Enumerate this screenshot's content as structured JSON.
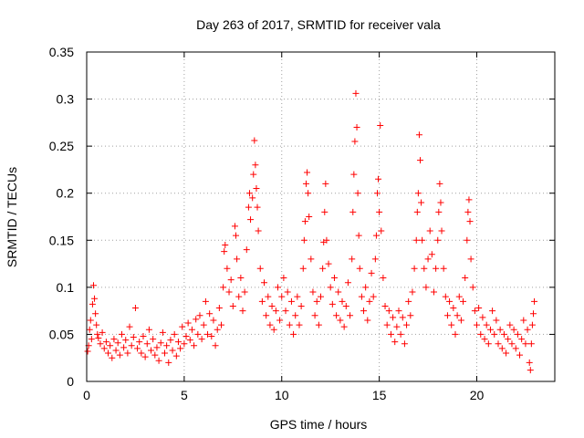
{
  "chart_data": {
    "type": "scatter",
    "title": "Day 263 of 2017, SRMTID for receiver vala",
    "xlabel": "GPS time / hours",
    "ylabel": "SRMTID / TECUs",
    "xlim": [
      0,
      24
    ],
    "ylim": [
      0,
      0.35
    ],
    "xticks": [
      0,
      5,
      10,
      15,
      20
    ],
    "xtick_labels": [
      "0",
      "5",
      "10",
      "15",
      "20"
    ],
    "yticks": [
      0,
      0.05,
      0.1,
      0.15,
      0.2,
      0.25,
      0.3,
      0.35
    ],
    "ytick_labels": [
      "0",
      "0.05",
      "0.1",
      "0.15",
      "0.2",
      "0.25",
      "0.3",
      "0.35"
    ],
    "grid": true,
    "marker": "plus",
    "marker_color": "#ff0000",
    "series": [
      {
        "name": "SRMTID",
        "points": [
          [
            0.05,
            0.032
          ],
          [
            0.1,
            0.038
          ],
          [
            0.15,
            0.055
          ],
          [
            0.2,
            0.065
          ],
          [
            0.25,
            0.045
          ],
          [
            0.3,
            0.082
          ],
          [
            0.35,
            0.102
          ],
          [
            0.4,
            0.088
          ],
          [
            0.45,
            0.072
          ],
          [
            0.5,
            0.06
          ],
          [
            0.55,
            0.05
          ],
          [
            0.6,
            0.046
          ],
          [
            0.7,
            0.04
          ],
          [
            0.8,
            0.052
          ],
          [
            0.9,
            0.035
          ],
          [
            1.0,
            0.042
          ],
          [
            1.1,
            0.03
          ],
          [
            1.2,
            0.038
          ],
          [
            1.3,
            0.025
          ],
          [
            1.4,
            0.045
          ],
          [
            1.5,
            0.033
          ],
          [
            1.6,
            0.041
          ],
          [
            1.7,
            0.028
          ],
          [
            1.8,
            0.05
          ],
          [
            1.9,
            0.036
          ],
          [
            2.0,
            0.044
          ],
          [
            2.1,
            0.03
          ],
          [
            2.2,
            0.058
          ],
          [
            2.3,
            0.038
          ],
          [
            2.4,
            0.047
          ],
          [
            2.5,
            0.078
          ],
          [
            2.6,
            0.035
          ],
          [
            2.7,
            0.042
          ],
          [
            2.8,
            0.03
          ],
          [
            2.9,
            0.048
          ],
          [
            3.0,
            0.026
          ],
          [
            3.1,
            0.04
          ],
          [
            3.2,
            0.055
          ],
          [
            3.3,
            0.033
          ],
          [
            3.4,
            0.045
          ],
          [
            3.5,
            0.028
          ],
          [
            3.6,
            0.036
          ],
          [
            3.7,
            0.022
          ],
          [
            3.8,
            0.041
          ],
          [
            3.9,
            0.052
          ],
          [
            4.0,
            0.03
          ],
          [
            4.1,
            0.038
          ],
          [
            4.2,
            0.02
          ],
          [
            4.3,
            0.044
          ],
          [
            4.4,
            0.033
          ],
          [
            4.5,
            0.05
          ],
          [
            4.6,
            0.027
          ],
          [
            4.7,
            0.042
          ],
          [
            4.8,
            0.035
          ],
          [
            4.9,
            0.058
          ],
          [
            5.0,
            0.04
          ],
          [
            5.1,
            0.048
          ],
          [
            5.2,
            0.062
          ],
          [
            5.3,
            0.044
          ],
          [
            5.4,
            0.055
          ],
          [
            5.5,
            0.038
          ],
          [
            5.6,
            0.066
          ],
          [
            5.7,
            0.05
          ],
          [
            5.8,
            0.07
          ],
          [
            5.9,
            0.045
          ],
          [
            6.0,
            0.06
          ],
          [
            6.1,
            0.085
          ],
          [
            6.2,
            0.05
          ],
          [
            6.3,
            0.072
          ],
          [
            6.4,
            0.048
          ],
          [
            6.5,
            0.065
          ],
          [
            6.6,
            0.038
          ],
          [
            6.7,
            0.055
          ],
          [
            6.8,
            0.078
          ],
          [
            6.9,
            0.06
          ],
          [
            7.0,
            0.1
          ],
          [
            7.05,
            0.138
          ],
          [
            7.1,
            0.145
          ],
          [
            7.2,
            0.12
          ],
          [
            7.3,
            0.095
          ],
          [
            7.4,
            0.108
          ],
          [
            7.5,
            0.08
          ],
          [
            7.6,
            0.165
          ],
          [
            7.65,
            0.155
          ],
          [
            7.7,
            0.13
          ],
          [
            7.8,
            0.09
          ],
          [
            7.9,
            0.11
          ],
          [
            8.0,
            0.075
          ],
          [
            8.1,
            0.095
          ],
          [
            8.2,
            0.14
          ],
          [
            8.3,
            0.185
          ],
          [
            8.35,
            0.2
          ],
          [
            8.4,
            0.172
          ],
          [
            8.5,
            0.195
          ],
          [
            8.55,
            0.22
          ],
          [
            8.6,
            0.256
          ],
          [
            8.65,
            0.23
          ],
          [
            8.7,
            0.205
          ],
          [
            8.75,
            0.185
          ],
          [
            8.8,
            0.16
          ],
          [
            8.9,
            0.12
          ],
          [
            9.0,
            0.085
          ],
          [
            9.1,
            0.105
          ],
          [
            9.2,
            0.07
          ],
          [
            9.3,
            0.09
          ],
          [
            9.4,
            0.06
          ],
          [
            9.5,
            0.08
          ],
          [
            9.6,
            0.055
          ],
          [
            9.7,
            0.075
          ],
          [
            9.8,
            0.1
          ],
          [
            9.9,
            0.065
          ],
          [
            10.0,
            0.09
          ],
          [
            10.1,
            0.11
          ],
          [
            10.2,
            0.075
          ],
          [
            10.3,
            0.095
          ],
          [
            10.4,
            0.06
          ],
          [
            10.5,
            0.085
          ],
          [
            10.6,
            0.05
          ],
          [
            10.7,
            0.07
          ],
          [
            10.8,
            0.09
          ],
          [
            10.9,
            0.06
          ],
          [
            11.0,
            0.08
          ],
          [
            11.1,
            0.12
          ],
          [
            11.15,
            0.15
          ],
          [
            11.2,
            0.17
          ],
          [
            11.25,
            0.21
          ],
          [
            11.3,
            0.222
          ],
          [
            11.35,
            0.2
          ],
          [
            11.4,
            0.175
          ],
          [
            11.5,
            0.13
          ],
          [
            11.6,
            0.095
          ],
          [
            11.7,
            0.07
          ],
          [
            11.8,
            0.085
          ],
          [
            11.9,
            0.06
          ],
          [
            12.0,
            0.09
          ],
          [
            12.1,
            0.12
          ],
          [
            12.15,
            0.148
          ],
          [
            12.2,
            0.18
          ],
          [
            12.25,
            0.21
          ],
          [
            12.3,
            0.15
          ],
          [
            12.4,
            0.125
          ],
          [
            12.5,
            0.1
          ],
          [
            12.6,
            0.082
          ],
          [
            12.7,
            0.11
          ],
          [
            12.8,
            0.07
          ],
          [
            12.9,
            0.095
          ],
          [
            13.0,
            0.065
          ],
          [
            13.1,
            0.085
          ],
          [
            13.2,
            0.058
          ],
          [
            13.3,
            0.08
          ],
          [
            13.4,
            0.105
          ],
          [
            13.5,
            0.07
          ],
          [
            13.6,
            0.13
          ],
          [
            13.65,
            0.18
          ],
          [
            13.7,
            0.22
          ],
          [
            13.75,
            0.255
          ],
          [
            13.8,
            0.306
          ],
          [
            13.85,
            0.27
          ],
          [
            13.9,
            0.2
          ],
          [
            13.95,
            0.155
          ],
          [
            14.0,
            0.12
          ],
          [
            14.1,
            0.09
          ],
          [
            14.2,
            0.075
          ],
          [
            14.3,
            0.1
          ],
          [
            14.4,
            0.065
          ],
          [
            14.5,
            0.085
          ],
          [
            14.6,
            0.115
          ],
          [
            14.7,
            0.09
          ],
          [
            14.8,
            0.13
          ],
          [
            14.85,
            0.155
          ],
          [
            14.9,
            0.2
          ],
          [
            14.95,
            0.215
          ],
          [
            15.0,
            0.18
          ],
          [
            15.05,
            0.272
          ],
          [
            15.1,
            0.16
          ],
          [
            15.2,
            0.11
          ],
          [
            15.3,
            0.08
          ],
          [
            15.4,
            0.06
          ],
          [
            15.5,
            0.075
          ],
          [
            15.6,
            0.05
          ],
          [
            15.7,
            0.068
          ],
          [
            15.8,
            0.042
          ],
          [
            15.9,
            0.058
          ],
          [
            16.0,
            0.075
          ],
          [
            16.1,
            0.05
          ],
          [
            16.2,
            0.068
          ],
          [
            16.3,
            0.04
          ],
          [
            16.4,
            0.06
          ],
          [
            16.5,
            0.085
          ],
          [
            16.6,
            0.07
          ],
          [
            16.7,
            0.095
          ],
          [
            16.8,
            0.12
          ],
          [
            16.9,
            0.15
          ],
          [
            16.95,
            0.18
          ],
          [
            17.0,
            0.2
          ],
          [
            17.05,
            0.262
          ],
          [
            17.1,
            0.235
          ],
          [
            17.15,
            0.19
          ],
          [
            17.2,
            0.15
          ],
          [
            17.3,
            0.12
          ],
          [
            17.4,
            0.1
          ],
          [
            17.5,
            0.13
          ],
          [
            17.6,
            0.16
          ],
          [
            17.7,
            0.135
          ],
          [
            17.8,
            0.095
          ],
          [
            17.9,
            0.12
          ],
          [
            18.0,
            0.15
          ],
          [
            18.05,
            0.18
          ],
          [
            18.1,
            0.21
          ],
          [
            18.15,
            0.19
          ],
          [
            18.2,
            0.16
          ],
          [
            18.3,
            0.12
          ],
          [
            18.4,
            0.09
          ],
          [
            18.5,
            0.07
          ],
          [
            18.6,
            0.085
          ],
          [
            18.7,
            0.06
          ],
          [
            18.8,
            0.078
          ],
          [
            18.9,
            0.05
          ],
          [
            19.0,
            0.07
          ],
          [
            19.1,
            0.09
          ],
          [
            19.2,
            0.065
          ],
          [
            19.3,
            0.085
          ],
          [
            19.4,
            0.11
          ],
          [
            19.5,
            0.15
          ],
          [
            19.55,
            0.18
          ],
          [
            19.6,
            0.193
          ],
          [
            19.65,
            0.17
          ],
          [
            19.7,
            0.13
          ],
          [
            19.8,
            0.1
          ],
          [
            19.9,
            0.075
          ],
          [
            20.0,
            0.06
          ],
          [
            20.1,
            0.078
          ],
          [
            20.2,
            0.05
          ],
          [
            20.3,
            0.068
          ],
          [
            20.4,
            0.045
          ],
          [
            20.5,
            0.06
          ],
          [
            20.6,
            0.04
          ],
          [
            20.7,
            0.055
          ],
          [
            20.8,
            0.075
          ],
          [
            20.9,
            0.05
          ],
          [
            21.0,
            0.065
          ],
          [
            21.1,
            0.04
          ],
          [
            21.2,
            0.055
          ],
          [
            21.3,
            0.035
          ],
          [
            21.4,
            0.05
          ],
          [
            21.5,
            0.03
          ],
          [
            21.6,
            0.045
          ],
          [
            21.7,
            0.06
          ],
          [
            21.8,
            0.04
          ],
          [
            21.9,
            0.055
          ],
          [
            22.0,
            0.035
          ],
          [
            22.1,
            0.05
          ],
          [
            22.2,
            0.028
          ],
          [
            22.3,
            0.045
          ],
          [
            22.4,
            0.065
          ],
          [
            22.5,
            0.04
          ],
          [
            22.6,
            0.055
          ],
          [
            22.7,
            0.02
          ],
          [
            22.75,
            0.012
          ],
          [
            22.8,
            0.04
          ],
          [
            22.85,
            0.06
          ],
          [
            22.9,
            0.072
          ],
          [
            22.95,
            0.085
          ]
        ]
      }
    ]
  }
}
